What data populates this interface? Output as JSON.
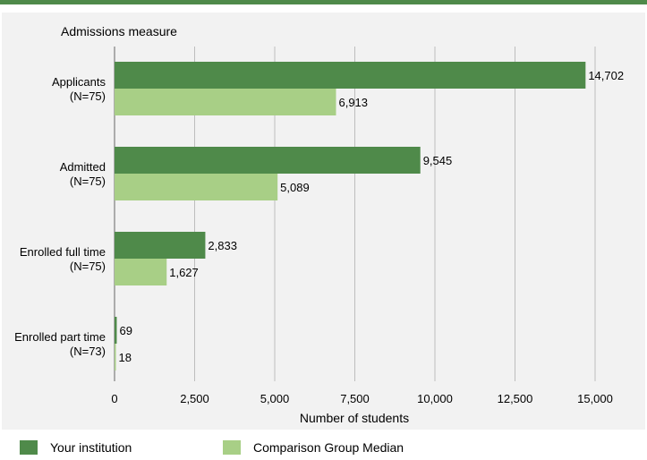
{
  "chart_data": {
    "type": "bar",
    "orientation": "horizontal",
    "title": "Admissions measure",
    "xlabel": "Number of students",
    "ylabel": "",
    "xlim": [
      0,
      15000
    ],
    "xticks": [
      0,
      2500,
      5000,
      7500,
      10000,
      12500,
      15000
    ],
    "xtick_labels": [
      "0",
      "2,500",
      "5,000",
      "7,500",
      "10,000",
      "12,500",
      "15,000"
    ],
    "grid": "vertical",
    "legend_position": "bottom",
    "categories": [
      [
        "Applicants",
        "(N=75)"
      ],
      [
        "Admitted",
        "(N=75)"
      ],
      [
        "Enrolled full time",
        "(N=75)"
      ],
      [
        "Enrolled part time",
        "(N=73)"
      ]
    ],
    "series": [
      {
        "name": "Your institution",
        "color": "#4f8a4a",
        "values": [
          14702,
          9545,
          2833,
          69
        ],
        "labels": [
          "14,702",
          "9,545",
          "2,833",
          "69"
        ]
      },
      {
        "name": "Comparison Group Median",
        "color": "#a8cf86",
        "values": [
          6913,
          5089,
          1627,
          18
        ],
        "labels": [
          "6,913",
          "5,089",
          "1,627",
          "18"
        ]
      }
    ]
  },
  "colors": {
    "accent": "#4f8a4a",
    "panel_background": "#f2f2f2"
  }
}
